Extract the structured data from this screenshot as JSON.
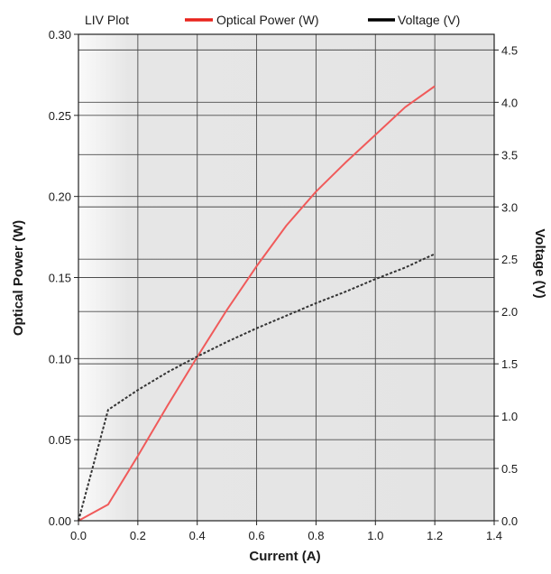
{
  "chart_data": {
    "type": "line",
    "title": "LIV Plot",
    "xlabel": "Current (A)",
    "ylabel": "Optical Power (W)",
    "y2label": "Voltage (V)",
    "xlim": [
      0.0,
      1.4
    ],
    "ylim": [
      0.0,
      0.3
    ],
    "y2lim": [
      0.0,
      4.65
    ],
    "grid": true,
    "legend_position": "top",
    "x_ticks": [
      "0.0",
      "0.2",
      "0.4",
      "0.6",
      "0.8",
      "1.0",
      "1.2",
      "1.4"
    ],
    "y_ticks": [
      "0.00",
      "0.05",
      "0.10",
      "0.15",
      "0.20",
      "0.25",
      "0.30"
    ],
    "y2_ticks": [
      "0.0",
      "0.5",
      "1.0",
      "1.5",
      "2.0",
      "2.5",
      "3.0",
      "3.5",
      "4.0",
      "4.5"
    ],
    "series": [
      {
        "name": "Optical Power (W)",
        "axis": "left",
        "color": "#f05a5a",
        "style": "solid",
        "x": [
          0.0,
          0.1,
          0.2,
          0.3,
          0.4,
          0.5,
          0.6,
          0.7,
          0.8,
          0.9,
          1.0,
          1.1,
          1.2
        ],
        "values": [
          0.0,
          0.01,
          0.04,
          0.071,
          0.101,
          0.13,
          0.157,
          0.182,
          0.203,
          0.221,
          0.238,
          0.255,
          0.268
        ]
      },
      {
        "name": "Voltage (V)",
        "axis": "right",
        "color": "#333333",
        "style": "dashed",
        "x": [
          0.0,
          0.1,
          0.2,
          0.3,
          0.4,
          0.5,
          0.6,
          0.7,
          0.8,
          0.9,
          1.0,
          1.1,
          1.2
        ],
        "values": [
          0.0,
          1.06,
          1.25,
          1.42,
          1.57,
          1.71,
          1.84,
          1.96,
          2.08,
          2.19,
          2.31,
          2.42,
          2.55
        ]
      }
    ]
  }
}
